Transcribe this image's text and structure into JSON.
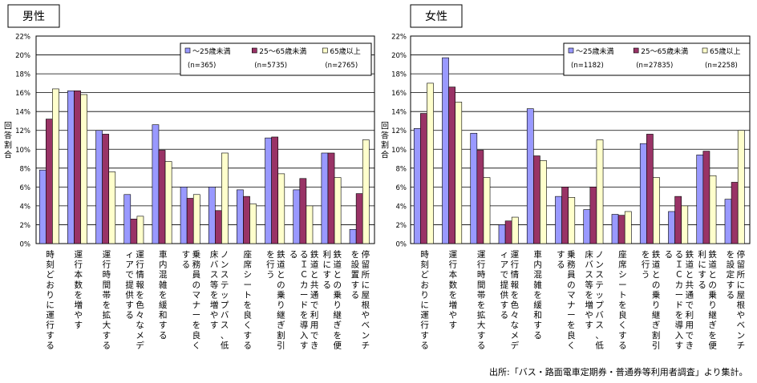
{
  "source_note": "出所:「バス・路面電車定期券・普通券等利用者調査」より集計。",
  "colors": {
    "series0": "#9999ff",
    "series1": "#993366",
    "series2": "#ffffcc",
    "stroke": "#000000"
  },
  "chart_data": [
    {
      "type": "bar",
      "title": "男性",
      "ylabel": "回答割合",
      "ylim": [
        0,
        22
      ],
      "ytick_step": 2,
      "yticks": [
        "0%",
        "2%",
        "4%",
        "6%",
        "8%",
        "10%",
        "12%",
        "14%",
        "16%",
        "18%",
        "20%",
        "22%"
      ],
      "grid": true,
      "legend_position": "top-right",
      "categories": [
        "時刻どおりに運行する",
        "運行本数を増やす",
        "運行時間帯を拡大する",
        "運行情報を色々なメディアで提供する",
        "車内混雑を緩和する",
        "乗務員のマナーを良くする",
        "ノンステップバス、低床バス等を増やす",
        "座席シートを良くする",
        "鉄道との乗り継ぎ割引を行う",
        "鉄道と共通で利用できるＩＣカードを導入する",
        "鉄道との乗り継ぎを便利にする",
        "停留所に屋根やベンチを設置する"
      ],
      "series": [
        {
          "name": "〜25歳未満",
          "n": "(n=365)",
          "values": [
            7.8,
            16.2,
            12.0,
            5.2,
            12.6,
            6.0,
            6.0,
            5.7,
            11.2,
            5.7,
            9.6,
            1.5
          ]
        },
        {
          "name": "25〜65歳未満",
          "n": "(n=5735)",
          "values": [
            13.2,
            16.2,
            11.6,
            2.6,
            9.9,
            4.8,
            3.5,
            5.0,
            11.3,
            6.9,
            9.6,
            5.3
          ]
        },
        {
          "name": "65歳以上",
          "n": "(n=2765)",
          "values": [
            16.4,
            15.8,
            7.6,
            2.9,
            8.7,
            5.2,
            9.6,
            4.2,
            7.4,
            4.0,
            7.0,
            11.0
          ]
        }
      ]
    },
    {
      "type": "bar",
      "title": "女性",
      "ylabel": "回答割合",
      "ylim": [
        0,
        22
      ],
      "ytick_step": 2,
      "yticks": [
        "0%",
        "2%",
        "4%",
        "6%",
        "8%",
        "10%",
        "12%",
        "14%",
        "16%",
        "18%",
        "20%",
        "22%"
      ],
      "grid": true,
      "legend_position": "top-right",
      "categories": [
        "時刻どおりに運行する",
        "運行本数を増やす",
        "運行時間帯を拡大する",
        "運行情報を色々なメディアで提供する",
        "車内混雑を緩和する",
        "乗務員のマナーを良くする",
        "ノンステップバス、低床バス等を増やす",
        "座席シートを良くする",
        "鉄道との乗り継ぎ割引を行う",
        "鉄道と共通で利用できるＩＣカードを導入する",
        "鉄道との乗り継ぎを便利にする",
        "停留所に屋根やベンチを設定する"
      ],
      "series": [
        {
          "name": "〜25歳未満",
          "n": "(n=1182)",
          "values": [
            12.2,
            19.7,
            11.7,
            2.0,
            14.3,
            5.0,
            3.6,
            3.1,
            10.6,
            3.4,
            9.4,
            4.7
          ]
        },
        {
          "name": "25〜65歳未満",
          "n": "(n=27835)",
          "values": [
            13.8,
            16.6,
            9.9,
            2.4,
            9.3,
            6.0,
            6.0,
            3.0,
            11.6,
            5.0,
            9.8,
            6.5
          ]
        },
        {
          "name": "65歳以上",
          "n": "(n=2258)",
          "values": [
            17.0,
            15.0,
            7.0,
            2.8,
            8.8,
            4.9,
            11.0,
            3.4,
            7.0,
            4.0,
            7.2,
            12.0
          ]
        }
      ]
    }
  ]
}
